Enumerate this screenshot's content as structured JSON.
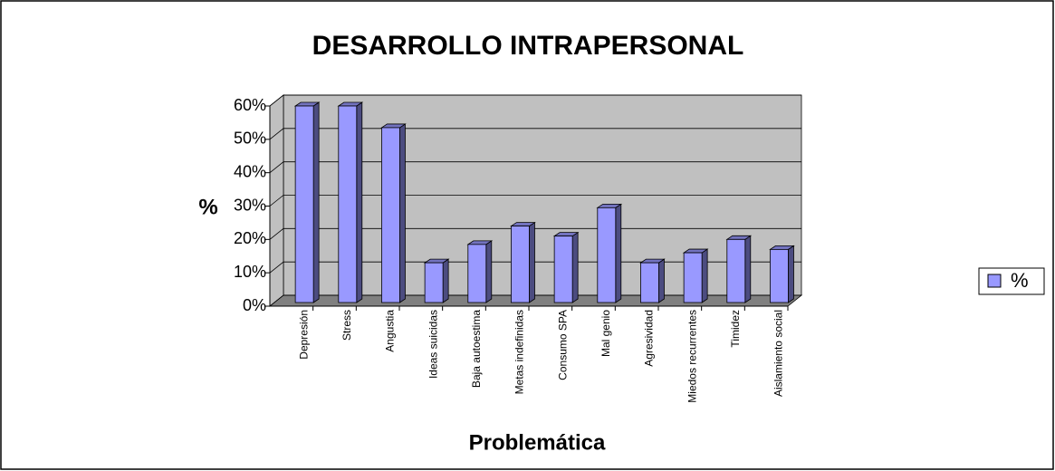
{
  "chart_data": {
    "type": "bar3d",
    "title": "DESARROLLO INTRAPERSONAL",
    "x_label": "Problemática",
    "y_label": "%",
    "categories": [
      "Depresión",
      "Stress",
      "Angustia",
      "Ideas suicidas",
      "Baja autoestima",
      "Metas indefinidas",
      "Consumo SPA",
      "Mal genio",
      "Agresividad",
      "Miedos recurrentes",
      "Timidez",
      "Aislamiento social"
    ],
    "series": [
      {
        "name": "%",
        "color": "#9999ff",
        "values": [
          60,
          60,
          53.5,
          13,
          18.5,
          24,
          21,
          29.5,
          13,
          16,
          20,
          17
        ]
      }
    ],
    "ylim": [
      0,
      60
    ],
    "yticks": [
      {
        "value": 0,
        "label": "0%"
      },
      {
        "value": 10,
        "label": "10%"
      },
      {
        "value": 20,
        "label": "20%"
      },
      {
        "value": 30,
        "label": "30%"
      },
      {
        "value": 40,
        "label": "40%"
      },
      {
        "value": 50,
        "label": "50%"
      },
      {
        "value": 60,
        "label": "60%"
      }
    ],
    "grid": true,
    "legend": "right"
  }
}
